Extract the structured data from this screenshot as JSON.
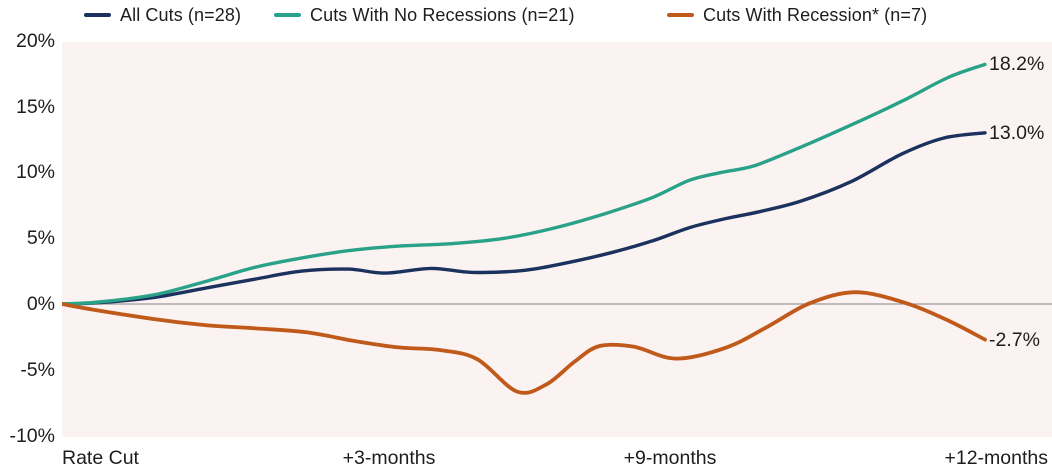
{
  "legend": {
    "items": [
      {
        "label": "All Cuts (n=28)",
        "color": "#1b315e"
      },
      {
        "label": "Cuts With No Recessions (n=21)",
        "color": "#2aa189"
      },
      {
        "label": "Cuts With Recession* (n=7)",
        "color": "#c05a1b"
      }
    ]
  },
  "chart_data": {
    "type": "line",
    "title": "",
    "x_axis": {
      "labels": [
        "Rate Cut",
        "+3-months",
        "+9-months",
        "+12-months"
      ],
      "label_anchor_t": [
        0,
        0.355,
        0.659,
        1
      ]
    },
    "y_axis": {
      "ticks": [
        "20%",
        "15%",
        "10%",
        "5%",
        "0%",
        "-5%",
        "-10%"
      ],
      "tick_values": [
        20,
        15,
        10,
        5,
        0,
        -5,
        -10
      ],
      "range": [
        -10,
        20
      ],
      "unit": "%"
    },
    "zero_line": true,
    "legend_position": "top",
    "grid": false,
    "series": [
      {
        "name": "All Cuts (n=28)",
        "color": "#1b315e",
        "stroke_width": 3.4,
        "end_label": "13.0%",
        "final_value": 13.0,
        "points": [
          [
            0,
            0
          ],
          [
            0.04,
            0.1
          ],
          [
            0.1,
            0.5
          ],
          [
            0.155,
            1.2
          ],
          [
            0.21,
            1.9
          ],
          [
            0.26,
            2.5
          ],
          [
            0.31,
            2.65
          ],
          [
            0.35,
            2.35
          ],
          [
            0.4,
            2.7
          ],
          [
            0.445,
            2.4
          ],
          [
            0.5,
            2.55
          ],
          [
            0.545,
            3.1
          ],
          [
            0.595,
            3.9
          ],
          [
            0.64,
            4.8
          ],
          [
            0.68,
            5.8
          ],
          [
            0.72,
            6.5
          ],
          [
            0.755,
            7.0
          ],
          [
            0.8,
            7.8
          ],
          [
            0.855,
            9.3
          ],
          [
            0.91,
            11.4
          ],
          [
            0.955,
            12.6
          ],
          [
            1,
            13.0
          ]
        ]
      },
      {
        "name": "Cuts With No Recessions (n=21)",
        "color": "#2aa189",
        "stroke_width": 3.4,
        "end_label": "18.2%",
        "final_value": 18.2,
        "points": [
          [
            0,
            0
          ],
          [
            0.04,
            0.15
          ],
          [
            0.1,
            0.7
          ],
          [
            0.155,
            1.7
          ],
          [
            0.21,
            2.8
          ],
          [
            0.26,
            3.5
          ],
          [
            0.31,
            4.05
          ],
          [
            0.365,
            4.4
          ],
          [
            0.425,
            4.6
          ],
          [
            0.48,
            5.0
          ],
          [
            0.535,
            5.8
          ],
          [
            0.59,
            6.9
          ],
          [
            0.64,
            8.1
          ],
          [
            0.68,
            9.4
          ],
          [
            0.715,
            10.0
          ],
          [
            0.75,
            10.5
          ],
          [
            0.8,
            11.9
          ],
          [
            0.855,
            13.6
          ],
          [
            0.91,
            15.4
          ],
          [
            0.96,
            17.2
          ],
          [
            1,
            18.2
          ]
        ]
      },
      {
        "name": "Cuts With Recession* (n=7)",
        "color": "#c05a1b",
        "stroke_width": 3.8,
        "end_label": "-2.7%",
        "final_value": -2.7,
        "points": [
          [
            0,
            0
          ],
          [
            0.04,
            -0.5
          ],
          [
            0.1,
            -1.15
          ],
          [
            0.155,
            -1.6
          ],
          [
            0.21,
            -1.85
          ],
          [
            0.265,
            -2.15
          ],
          [
            0.32,
            -2.85
          ],
          [
            0.365,
            -3.3
          ],
          [
            0.41,
            -3.5
          ],
          [
            0.45,
            -4.2
          ],
          [
            0.493,
            -6.65
          ],
          [
            0.525,
            -6.1
          ],
          [
            0.555,
            -4.4
          ],
          [
            0.582,
            -3.2
          ],
          [
            0.62,
            -3.25
          ],
          [
            0.665,
            -4.15
          ],
          [
            0.72,
            -3.3
          ],
          [
            0.765,
            -1.7
          ],
          [
            0.81,
            0.05
          ],
          [
            0.86,
            0.9
          ],
          [
            0.915,
            0.05
          ],
          [
            0.96,
            -1.25
          ],
          [
            1,
            -2.7
          ]
        ]
      }
    ]
  },
  "colors": {
    "plot_background": "#fbf3f1",
    "page_background": "#ffffff",
    "zero_line": "#9b9b9b",
    "text": "#1d1d1d"
  }
}
